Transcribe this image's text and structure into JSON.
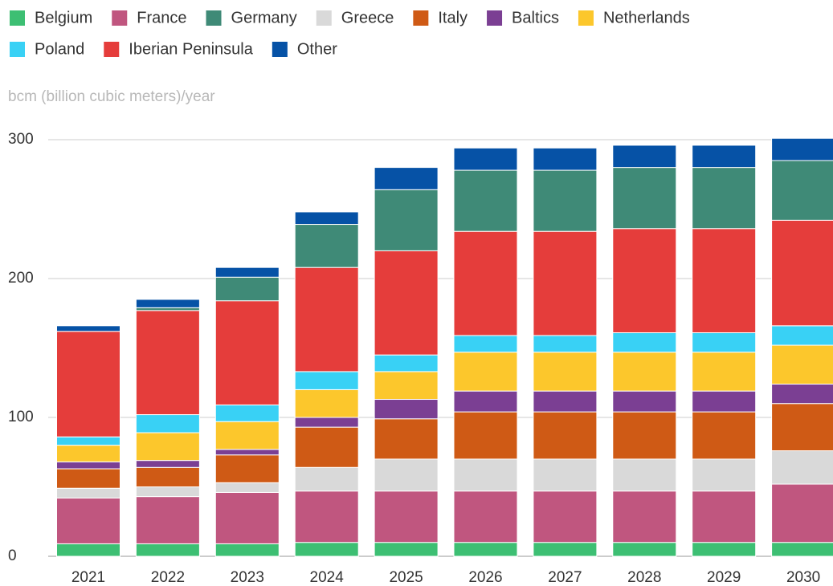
{
  "chart_data": {
    "type": "stacked_bar",
    "y_axis_label": "bcm (billion cubic meters)/year",
    "categories": [
      "2021",
      "2022",
      "2023",
      "2024",
      "2025",
      "2026",
      "2027",
      "2028",
      "2029",
      "2030"
    ],
    "series": [
      {
        "name": "Belgium",
        "color": "#3dbf73",
        "values": [
          9,
          9,
          9,
          10,
          10,
          10,
          10,
          10,
          10,
          10
        ]
      },
      {
        "name": "France",
        "color": "#c0567f",
        "values": [
          33,
          34,
          37,
          37,
          37,
          37,
          37,
          37,
          37,
          42
        ]
      },
      {
        "name": "Greece",
        "color": "#d9d9d9",
        "values": [
          7,
          7,
          7,
          17,
          23,
          23,
          23,
          23,
          23,
          24
        ]
      },
      {
        "name": "Italy",
        "color": "#cf5a15",
        "values": [
          14,
          14,
          20,
          29,
          29,
          34,
          34,
          34,
          34,
          34
        ]
      },
      {
        "name": "Baltics",
        "color": "#7b3f93",
        "values": [
          5,
          5,
          4,
          7,
          14,
          15,
          15,
          15,
          15,
          14
        ]
      },
      {
        "name": "Netherlands",
        "color": "#fcc72c",
        "values": [
          12,
          20,
          20,
          20,
          20,
          28,
          28,
          28,
          28,
          28
        ]
      },
      {
        "name": "Poland",
        "color": "#39d1f5",
        "values": [
          6,
          13,
          12,
          13,
          12,
          12,
          12,
          14,
          14,
          14
        ]
      },
      {
        "name": "Iberian Peninsula",
        "color": "#e53d3b",
        "values": [
          76,
          75,
          75,
          75,
          75,
          75,
          75,
          75,
          75,
          76
        ]
      },
      {
        "name": "Germany",
        "color": "#3f8a77",
        "values": [
          0,
          2,
          17,
          31,
          44,
          44,
          44,
          44,
          44,
          43
        ]
      },
      {
        "name": "Other",
        "color": "#0652a6",
        "values": [
          4,
          6,
          7,
          9,
          16,
          16,
          16,
          16,
          16,
          16
        ]
      }
    ],
    "legend_order": [
      0,
      1,
      8,
      2,
      3,
      4,
      5,
      6,
      7,
      9
    ],
    "ylim": [
      0,
      300
    ],
    "yticks": [
      0,
      100,
      200,
      300
    ],
    "grid": true
  }
}
